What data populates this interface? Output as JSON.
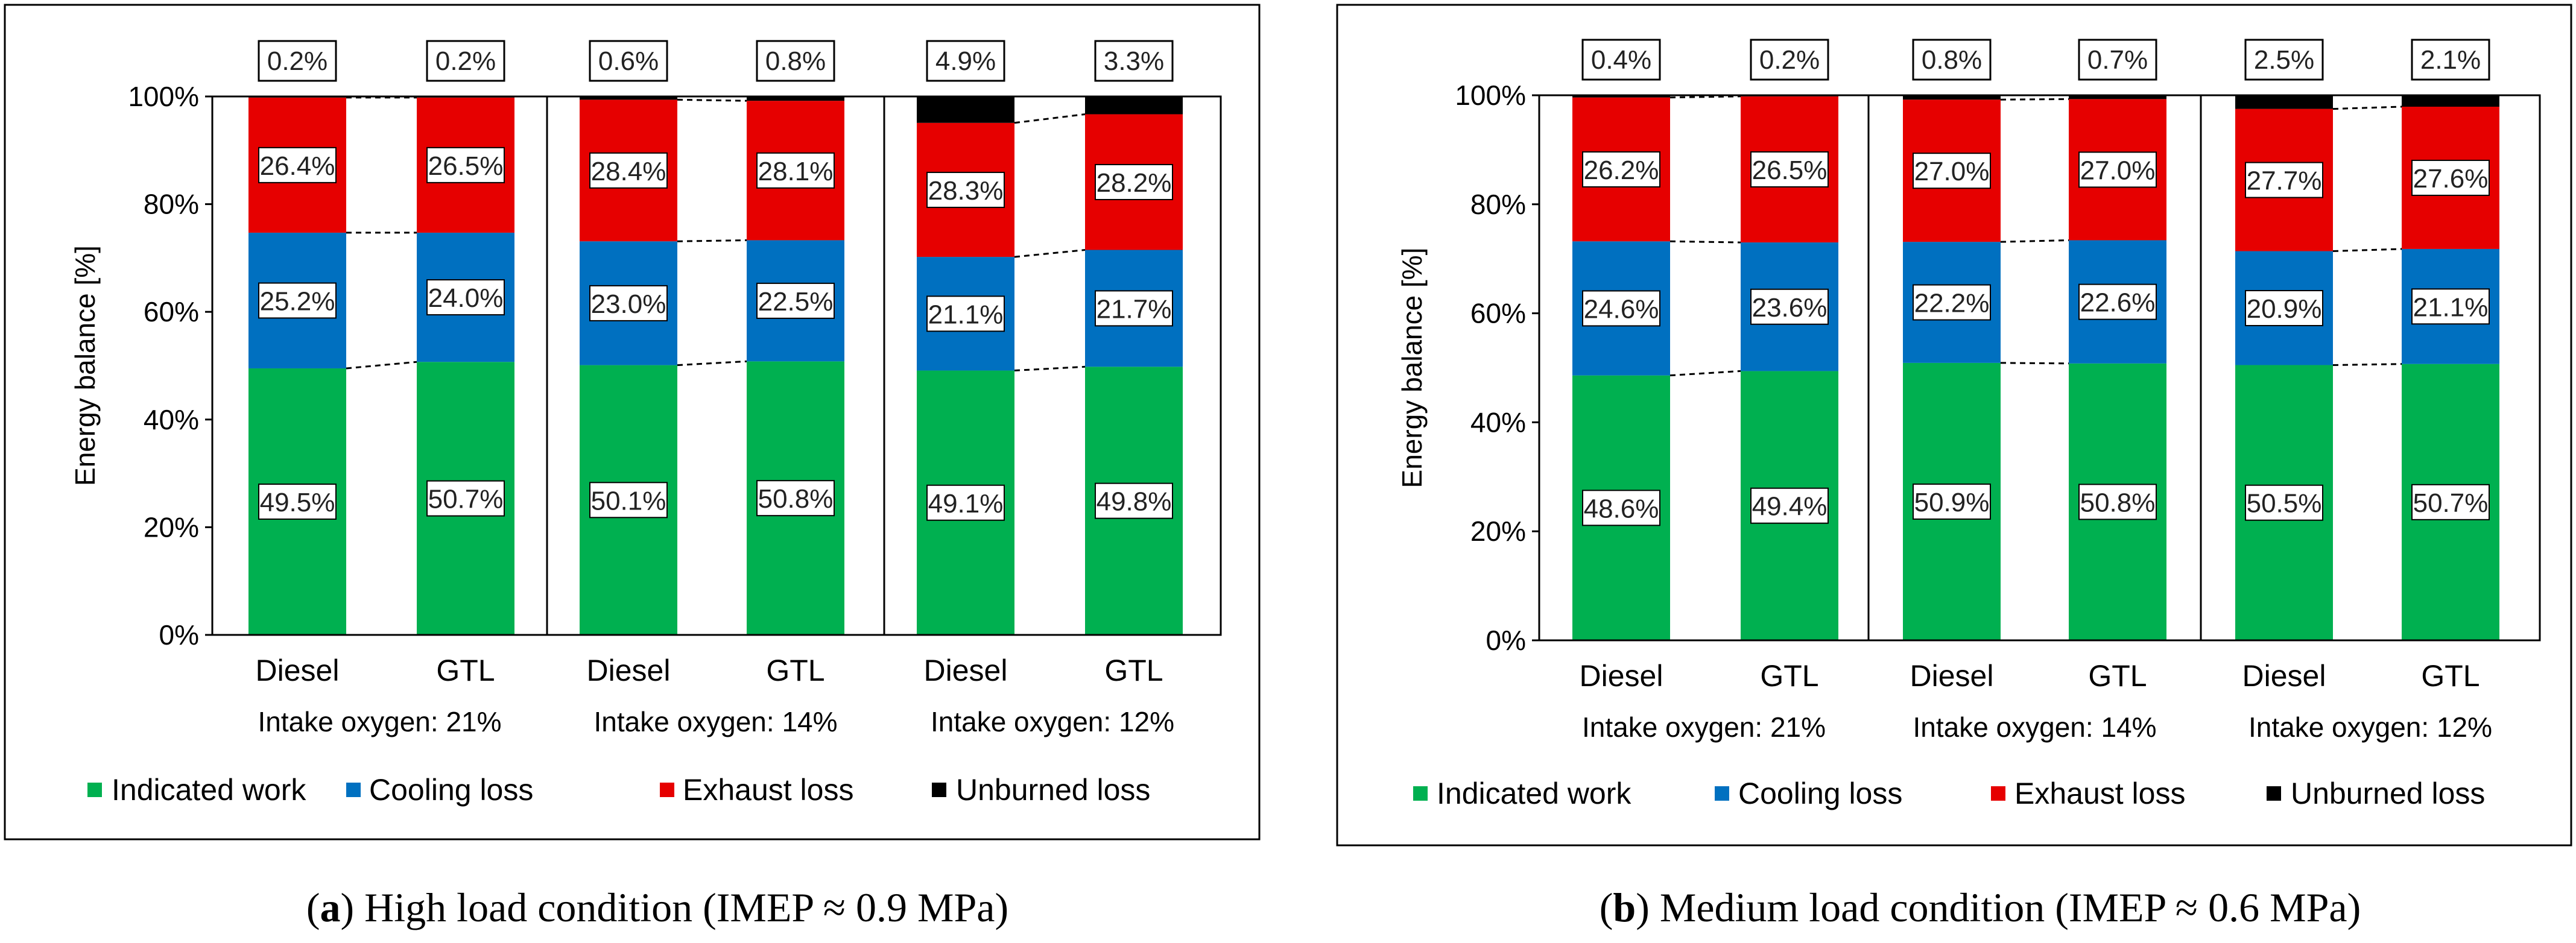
{
  "colors": {
    "indicated": "#00B050",
    "cooling": "#0070C0",
    "exhaust": "#E60000",
    "unburned": "#000000"
  },
  "chart_data": [
    {
      "type": "bar",
      "stacked": true,
      "title": "",
      "ylabel": "Energy balance [%]",
      "ylim": [
        0,
        100
      ],
      "ytick_labels": [
        "0%",
        "20%",
        "40%",
        "60%",
        "80%",
        "100%"
      ],
      "categories": [
        "Diesel",
        "GTL",
        "Diesel",
        "GTL",
        "Diesel",
        "GTL"
      ],
      "groups": [
        "Intake oxygen: 21%",
        "Intake oxygen: 14%",
        "Intake oxygen: 12%"
      ],
      "legend": {
        "position": "bottom"
      },
      "series": [
        {
          "name": "Indicated work",
          "values": [
            49.5,
            50.7,
            50.1,
            50.8,
            49.1,
            49.8
          ],
          "labels": [
            "49.5%",
            "50.7%",
            "50.1%",
            "50.8%",
            "49.1%",
            "49.8%"
          ]
        },
        {
          "name": "Cooling loss",
          "values": [
            25.2,
            24.0,
            23.0,
            22.5,
            21.1,
            21.7
          ],
          "labels": [
            "25.2%",
            "24.0%",
            "23.0%",
            "22.5%",
            "21.1%",
            "21.7%"
          ]
        },
        {
          "name": "Exhaust loss",
          "values": [
            26.4,
            26.5,
            28.4,
            28.1,
            28.3,
            28.2
          ],
          "labels": [
            "26.4%",
            "26.5%",
            "28.4%",
            "28.1%",
            "28.3%",
            "28.2%"
          ]
        },
        {
          "name": "Unburned loss",
          "values": [
            0.2,
            0.2,
            0.6,
            0.8,
            4.9,
            3.3
          ],
          "labels": [
            "0.2%",
            "0.2%",
            "0.6%",
            "0.8%",
            "4.9%",
            "3.3%"
          ]
        }
      ],
      "caption_letter": "a",
      "caption_text": ") High load condition (IMEP ≈ 0.9 MPa)"
    },
    {
      "type": "bar",
      "stacked": true,
      "title": "",
      "ylabel": "Energy balance [%]",
      "ylim": [
        0,
        100
      ],
      "ytick_labels": [
        "0%",
        "20%",
        "40%",
        "60%",
        "80%",
        "100%"
      ],
      "categories": [
        "Diesel",
        "GTL",
        "Diesel",
        "GTL",
        "Diesel",
        "GTL"
      ],
      "groups": [
        "Intake oxygen: 21%",
        "Intake oxygen: 14%",
        "Intake oxygen: 12%"
      ],
      "legend": {
        "position": "bottom"
      },
      "series": [
        {
          "name": "Indicated work",
          "values": [
            48.6,
            49.4,
            50.9,
            50.8,
            50.5,
            50.7
          ],
          "labels": [
            "48.6%",
            "49.4%",
            "50.9%",
            "50.8%",
            "50.5%",
            "50.7%"
          ]
        },
        {
          "name": "Cooling loss",
          "values": [
            24.6,
            23.6,
            22.2,
            22.6,
            20.9,
            21.1
          ],
          "labels": [
            "24.6%",
            "23.6%",
            "22.2%",
            "22.6%",
            "20.9%",
            "21.1%"
          ]
        },
        {
          "name": "Exhaust loss",
          "values": [
            26.2,
            26.5,
            27.0,
            27.0,
            27.7,
            27.6
          ],
          "labels": [
            "26.2%",
            "26.5%",
            "27.0%",
            "27.0%",
            "27.7%",
            "27.6%"
          ]
        },
        {
          "name": "Unburned loss",
          "values": [
            0.4,
            0.2,
            0.8,
            0.7,
            2.5,
            2.1
          ],
          "labels": [
            "0.4%",
            "0.2%",
            "0.8%",
            "0.7%",
            "2.5%",
            "2.1%"
          ]
        }
      ],
      "caption_letter": "b",
      "caption_text": ") Medium load condition (IMEP ≈ 0.6 MPa)"
    }
  ]
}
